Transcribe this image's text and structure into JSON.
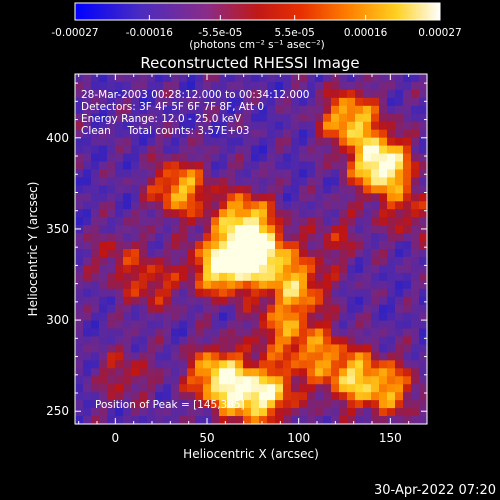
{
  "chart_data": {
    "type": "heatmap",
    "title": "Reconstructed RHESSI Image",
    "xlabel": "Heliocentric X (arcsec)",
    "ylabel": "Heliocentric Y (arcsec)",
    "xlim": [
      -22,
      170
    ],
    "ylim": [
      243,
      435
    ],
    "x_ticks": [
      0,
      50,
      100,
      150
    ],
    "y_ticks": [
      250,
      300,
      350,
      400
    ],
    "colorbar": {
      "range": [
        -0.00027,
        0.00027
      ],
      "tick_values": [
        -0.00027,
        -0.00016,
        -5.5e-05,
        5.5e-05,
        0.00016,
        0.00027
      ],
      "tick_labels": [
        "-0.00027",
        "-0.00016",
        "-5.5e-05",
        "5.5e-05",
        "0.00016",
        "0.00027"
      ],
      "units": "(photons cm⁻² s⁻¹ asec⁻²)",
      "colors": [
        "#0000c0",
        "#5a2ca8",
        "#8a2c7a",
        "#c01818",
        "#e85000",
        "#ff9a00",
        "#ffe040",
        "#ffffff"
      ]
    },
    "annotations": {
      "time_range": "28-Mar-2003 00:28:12.000 to 00:34:12.000",
      "detectors": "Detectors: 3F 4F 5F 6F 7F 8F, Att 0",
      "energy": "Energy Range: 12.0 - 25.0 keV",
      "clean": "Clean     Total counts: 3.57E+03",
      "peak": "Position of Peak = [145,385]"
    },
    "sources": [
      {
        "x": 35,
        "y": 372,
        "amp": 1.8
      },
      {
        "x": 58,
        "y": 330,
        "amp": 2.5
      },
      {
        "x": 80,
        "y": 335,
        "amp": 2.3
      },
      {
        "x": 70,
        "y": 355,
        "amp": 2.0
      },
      {
        "x": 100,
        "y": 318,
        "amp": 1.6
      },
      {
        "x": 90,
        "y": 295,
        "amp": 1.2
      },
      {
        "x": 55,
        "y": 270,
        "amp": 2.0
      },
      {
        "x": 70,
        "y": 258,
        "amp": 1.6
      },
      {
        "x": 85,
        "y": 260,
        "amp": 1.5
      },
      {
        "x": 110,
        "y": 282,
        "amp": 1.3
      },
      {
        "x": 130,
        "y": 268,
        "amp": 1.7
      },
      {
        "x": 150,
        "y": 262,
        "amp": 1.4
      },
      {
        "x": 145,
        "y": 385,
        "amp": 2.8
      },
      {
        "x": 128,
        "y": 410,
        "amp": 2.0
      },
      {
        "x": 160,
        "y": 360,
        "amp": 0.9
      },
      {
        "x": 5,
        "y": 270,
        "amp": 0.8
      },
      {
        "x": 20,
        "y": 320,
        "amp": 1.0
      },
      {
        "x": 0,
        "y": 335,
        "amp": 0.7
      },
      {
        "x": 120,
        "y": 345,
        "amp": 0.7
      }
    ]
  },
  "footer": {
    "timestamp": "30-Apr-2022 07:20"
  }
}
